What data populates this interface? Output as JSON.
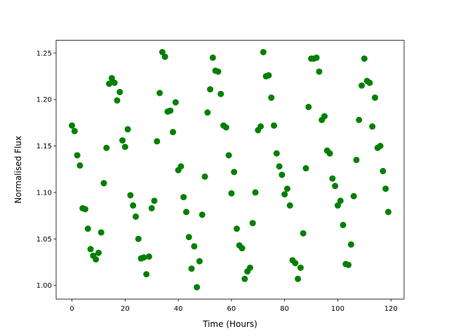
{
  "chart_data": {
    "type": "scatter",
    "x_label": "Time (Hours)",
    "y_label": "Normalised Flux",
    "color": "#008000",
    "grid": false,
    "xlim": [
      -5.95,
      124.95
    ],
    "ylim": [
      0.9853,
      1.2637
    ],
    "xticks": [
      0,
      20,
      40,
      60,
      80,
      100,
      120
    ],
    "yticks": [
      {
        "value": 1.0,
        "label": "1.00"
      },
      1.05,
      {
        "value": 1.1,
        "label": "1.10"
      },
      1.15,
      {
        "value": 1.2,
        "label": "1.20"
      },
      1.25
    ],
    "x": [
      0,
      1,
      2,
      3,
      4,
      5,
      6,
      7,
      8,
      9,
      10,
      11,
      12,
      13,
      14,
      15,
      16,
      17,
      18,
      19,
      20,
      21,
      22,
      23,
      24,
      25,
      26,
      27,
      28,
      29,
      30,
      31,
      32,
      33,
      34,
      35,
      36,
      37,
      38,
      39,
      40,
      41,
      42,
      43,
      44,
      45,
      46,
      47,
      48,
      49,
      50,
      51,
      52,
      53,
      54,
      55,
      56,
      57,
      58,
      59,
      60,
      61,
      62,
      63,
      64,
      65,
      66,
      67,
      68,
      69,
      70,
      71,
      72,
      73,
      74,
      75,
      76,
      77,
      78,
      79,
      80,
      81,
      82,
      83,
      84,
      85,
      86,
      87,
      88,
      89,
      90,
      91,
      92,
      93,
      94,
      95,
      96,
      97,
      98,
      99,
      100,
      101,
      102,
      103,
      104,
      105,
      106,
      107,
      108,
      109,
      110,
      111,
      112,
      113,
      114,
      115,
      116,
      117,
      118,
      119
    ],
    "values": [
      1.172,
      1.166,
      1.14,
      1.129,
      1.083,
      1.082,
      1.061,
      1.039,
      1.032,
      1.028,
      1.035,
      1.057,
      1.11,
      1.148,
      1.217,
      1.223,
      1.218,
      1.199,
      1.208,
      1.156,
      1.149,
      1.168,
      1.097,
      1.086,
      1.074,
      1.05,
      1.029,
      1.03,
      1.012,
      1.031,
      1.083,
      1.091,
      1.155,
      1.207,
      1.251,
      1.246,
      1.187,
      1.188,
      1.165,
      1.197,
      1.124,
      1.128,
      1.095,
      1.079,
      1.052,
      1.018,
      1.042,
      0.998,
      1.026,
      1.076,
      1.117,
      1.186,
      1.211,
      1.245,
      1.231,
      1.23,
      1.206,
      1.172,
      1.17,
      1.14,
      1.099,
      1.122,
      1.061,
      1.043,
      1.04,
      1.007,
      1.015,
      1.019,
      1.067,
      1.1,
      1.167,
      1.171,
      1.251,
      1.225,
      1.226,
      1.202,
      1.172,
      1.142,
      1.128,
      1.119,
      1.098,
      1.104,
      1.086,
      1.027,
      1.024,
      1.007,
      1.019,
      1.056,
      1.126,
      1.192,
      1.244,
      1.244,
      1.245,
      1.23,
      1.178,
      1.182,
      1.145,
      1.142,
      1.115,
      1.107,
      1.086,
      1.091,
      1.065,
      1.023,
      1.022,
      1.044,
      1.096,
      1.135,
      1.178,
      1.215,
      1.244,
      1.22,
      1.218,
      1.171,
      1.202,
      1.148,
      1.15,
      1.123,
      1.104,
      1.079
    ]
  }
}
